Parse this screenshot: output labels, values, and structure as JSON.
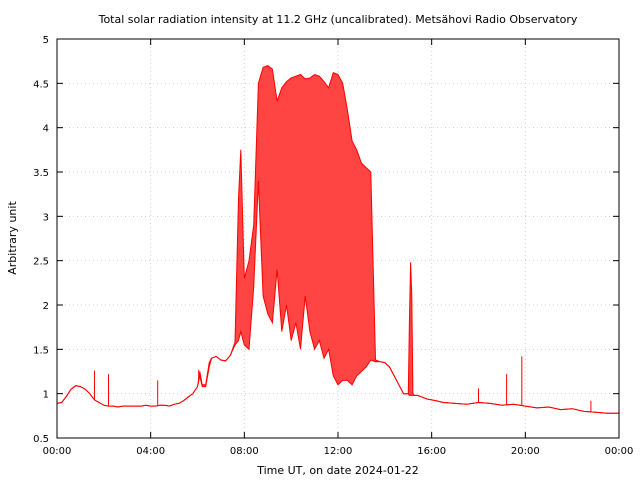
{
  "chart_data": {
    "type": "line",
    "title": "Total solar radiation intensity at 11.2 GHz (uncalibrated). Metsähovi Radio Observatory",
    "xlabel": "Time UT, on date 2024-01-22",
    "ylabel": "Arbitrary unit",
    "x_unit": "hours UT",
    "xlim": [
      0,
      24
    ],
    "ylim": [
      0.5,
      5
    ],
    "x_ticks": [
      0,
      4,
      8,
      12,
      16,
      20,
      24
    ],
    "x_tick_labels": [
      "00:00",
      "04:00",
      "08:00",
      "12:00",
      "16:00",
      "20:00",
      "00:00"
    ],
    "y_ticks": [
      0.5,
      1,
      1.5,
      2,
      2.5,
      3,
      3.5,
      4,
      4.5,
      5
    ],
    "y_tick_labels": [
      "0.5",
      "1",
      "1.5",
      "2",
      "2.5",
      "3",
      "3.5",
      "4",
      "4.5",
      "5"
    ],
    "grid": true,
    "series_color": "#ff0000",
    "band_fill_color": "#ff4444",
    "series": [
      {
        "name": "",
        "x": [
          0,
          0.2,
          0.4,
          0.6,
          0.8,
          1.0,
          1.2,
          1.4,
          1.6,
          1.8,
          2.0,
          2.2,
          2.4,
          2.6,
          2.8,
          3.0,
          3.2,
          3.4,
          3.6,
          3.8,
          4.0,
          4.2,
          4.4,
          4.6,
          4.8,
          5.0,
          5.2,
          5.4,
          5.6,
          5.8,
          6.0,
          6.1,
          6.2,
          6.35,
          6.5,
          6.6,
          6.7,
          6.8,
          7.0,
          7.2,
          7.4,
          7.6,
          7.75,
          7.85,
          8.0,
          8.2,
          8.4,
          8.6,
          8.8,
          9.0,
          9.2,
          9.4,
          9.6,
          9.8,
          10.0,
          10.2,
          10.4,
          10.6,
          10.8,
          11.0,
          11.2,
          11.4,
          11.6,
          11.8,
          12.0,
          12.2,
          12.4,
          12.6,
          12.8,
          13.0,
          13.2,
          13.4,
          13.6,
          13.8,
          14.0,
          14.2,
          14.4,
          14.6,
          14.8,
          15.0,
          15.05,
          15.1,
          15.15,
          15.2,
          15.25,
          15.4,
          15.6,
          15.8,
          16.0,
          16.2,
          16.5,
          17.0,
          17.5,
          18.0,
          18.5,
          19.0,
          19.5,
          20.0,
          20.5,
          21.0,
          21.5,
          22.0,
          22.5,
          23.0,
          23.5,
          24.0
        ],
        "y_low": [
          0.89,
          0.9,
          0.97,
          1.05,
          1.09,
          1.08,
          1.05,
          1.0,
          0.93,
          0.9,
          0.87,
          0.86,
          0.86,
          0.85,
          0.86,
          0.86,
          0.86,
          0.86,
          0.86,
          0.87,
          0.86,
          0.86,
          0.87,
          0.87,
          0.86,
          0.88,
          0.89,
          0.92,
          0.96,
          1.0,
          1.08,
          1.2,
          1.08,
          1.08,
          1.3,
          1.4,
          1.41,
          1.42,
          1.38,
          1.37,
          1.43,
          1.55,
          1.6,
          1.7,
          1.55,
          1.5,
          2.2,
          3.4,
          2.1,
          1.9,
          1.8,
          2.4,
          1.7,
          2.0,
          1.6,
          1.8,
          1.5,
          2.1,
          1.7,
          1.5,
          1.6,
          1.4,
          1.5,
          1.2,
          1.1,
          1.15,
          1.15,
          1.1,
          1.2,
          1.25,
          1.3,
          1.38,
          1.36,
          1.36,
          1.35,
          1.3,
          1.2,
          1.1,
          1.0,
          1.0,
          0.98,
          0.98,
          0.98,
          0.98,
          0.98,
          0.98,
          0.96,
          0.94,
          0.93,
          0.92,
          0.9,
          0.89,
          0.88,
          0.9,
          0.89,
          0.87,
          0.88,
          0.86,
          0.84,
          0.85,
          0.82,
          0.83,
          0.8,
          0.79,
          0.78,
          0.78
        ],
        "y_high": [
          0.89,
          0.9,
          0.97,
          1.05,
          1.09,
          1.08,
          1.05,
          1.0,
          0.93,
          0.9,
          0.87,
          0.86,
          0.86,
          0.85,
          0.86,
          0.86,
          0.86,
          0.86,
          0.86,
          0.87,
          0.86,
          0.86,
          0.87,
          0.87,
          0.86,
          0.88,
          0.89,
          0.92,
          0.96,
          1.0,
          1.08,
          1.25,
          1.1,
          1.1,
          1.35,
          1.4,
          1.41,
          1.42,
          1.38,
          1.37,
          1.43,
          1.58,
          3.2,
          3.75,
          2.3,
          2.5,
          2.9,
          4.5,
          4.68,
          4.7,
          4.66,
          4.3,
          4.45,
          4.52,
          4.56,
          4.58,
          4.6,
          4.55,
          4.56,
          4.6,
          4.58,
          4.52,
          4.45,
          4.62,
          4.6,
          4.5,
          4.2,
          3.85,
          3.75,
          3.6,
          3.55,
          3.5,
          1.38,
          1.36,
          1.35,
          1.3,
          1.2,
          1.1,
          1.0,
          1.0,
          1.8,
          2.48,
          2.1,
          1.0,
          0.98,
          0.98,
          0.96,
          0.94,
          0.93,
          0.92,
          0.9,
          0.89,
          0.88,
          0.9,
          0.89,
          0.87,
          0.88,
          0.86,
          0.84,
          0.85,
          0.82,
          0.83,
          0.8,
          0.79,
          0.78,
          0.78
        ]
      }
    ],
    "spikes": [
      {
        "x": 1.6,
        "y": 1.26
      },
      {
        "x": 2.2,
        "y": 1.22
      },
      {
        "x": 4.3,
        "y": 1.15
      },
      {
        "x": 6.05,
        "y": 1.27
      },
      {
        "x": 18.0,
        "y": 1.06
      },
      {
        "x": 19.2,
        "y": 1.22
      },
      {
        "x": 19.85,
        "y": 1.42
      },
      {
        "x": 22.8,
        "y": 0.92
      }
    ]
  }
}
